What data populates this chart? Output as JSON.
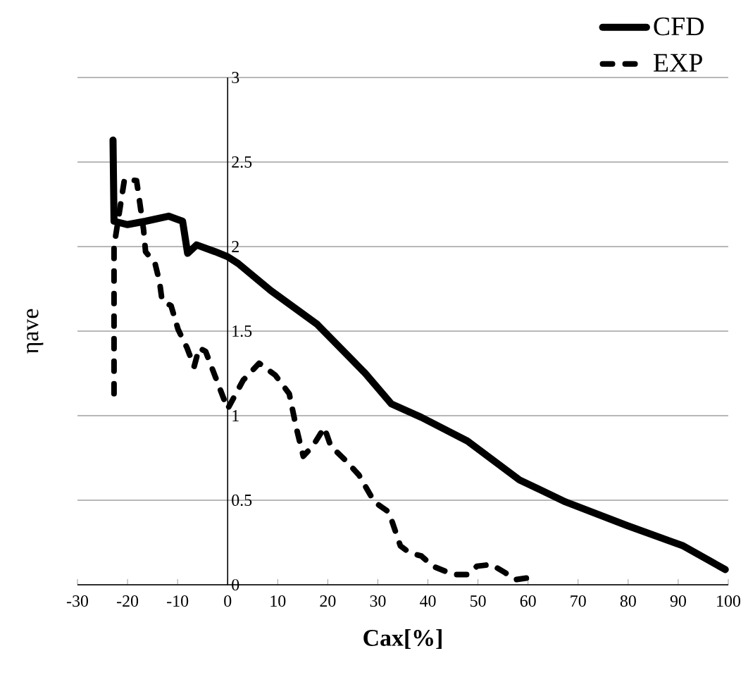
{
  "chart_data": {
    "type": "line",
    "xlabel": "Cax[%]",
    "ylabel": "ηave",
    "xlim": [
      -30,
      100
    ],
    "xticks": [
      -30,
      -20,
      -10,
      0,
      10,
      20,
      30,
      40,
      50,
      60,
      70,
      80,
      90,
      100
    ],
    "ylim": [
      0,
      3
    ],
    "yticks": [
      0,
      0.5,
      1,
      1.5,
      2,
      2.5,
      3
    ],
    "grid": "y",
    "legend": "top right",
    "series": [
      {
        "name": "CFD",
        "color": "#000000",
        "line_style": "solid",
        "x": [
          -22.9,
          -22.7,
          -20,
          -16.4,
          -11.8,
          -9,
          -8,
          -6.2,
          -2.5,
          0,
          2.1,
          8.6,
          17.9,
          27.5,
          32.7,
          38.7,
          47.9,
          58.3,
          67.5,
          79.8,
          91,
          99.4
        ],
        "values": [
          2.63,
          2.15,
          2.13,
          2.15,
          2.18,
          2.15,
          1.96,
          2.01,
          1.97,
          1.94,
          1.9,
          1.74,
          1.54,
          1.25,
          1.07,
          0.99,
          0.85,
          0.62,
          0.49,
          0.35,
          0.23,
          0.09
        ]
      },
      {
        "name": "EXP",
        "color": "#000000",
        "line_style": "dashed",
        "x": [
          -22.7,
          -22.7,
          -20.6,
          -18.2,
          -17.7,
          -16.8,
          -16.4,
          -14.5,
          -13.6,
          -13.1,
          -11.3,
          -9.9,
          -8.1,
          -6.7,
          -5.7,
          -4.4,
          0,
          3.1,
          6.3,
          9.5,
          12.3,
          13.7,
          15.1,
          17,
          19.3,
          20.6,
          23.4,
          26.2,
          29.3,
          32.2,
          34.5,
          36.3,
          38.7,
          41,
          45.1,
          47.9,
          49.8,
          52.7,
          55.5,
          57.4,
          59.8,
          60.7
        ],
        "values": [
          1.13,
          2.0,
          2.4,
          2.39,
          2.29,
          2.1,
          1.97,
          1.9,
          1.79,
          1.68,
          1.65,
          1.51,
          1.4,
          1.29,
          1.4,
          1.38,
          1.04,
          1.21,
          1.31,
          1.24,
          1.13,
          0.93,
          0.76,
          0.82,
          0.93,
          0.82,
          0.74,
          0.65,
          0.49,
          0.43,
          0.23,
          0.19,
          0.17,
          0.11,
          0.06,
          0.06,
          0.11,
          0.12,
          0.07,
          0.03,
          0.04,
          0
        ]
      }
    ]
  }
}
